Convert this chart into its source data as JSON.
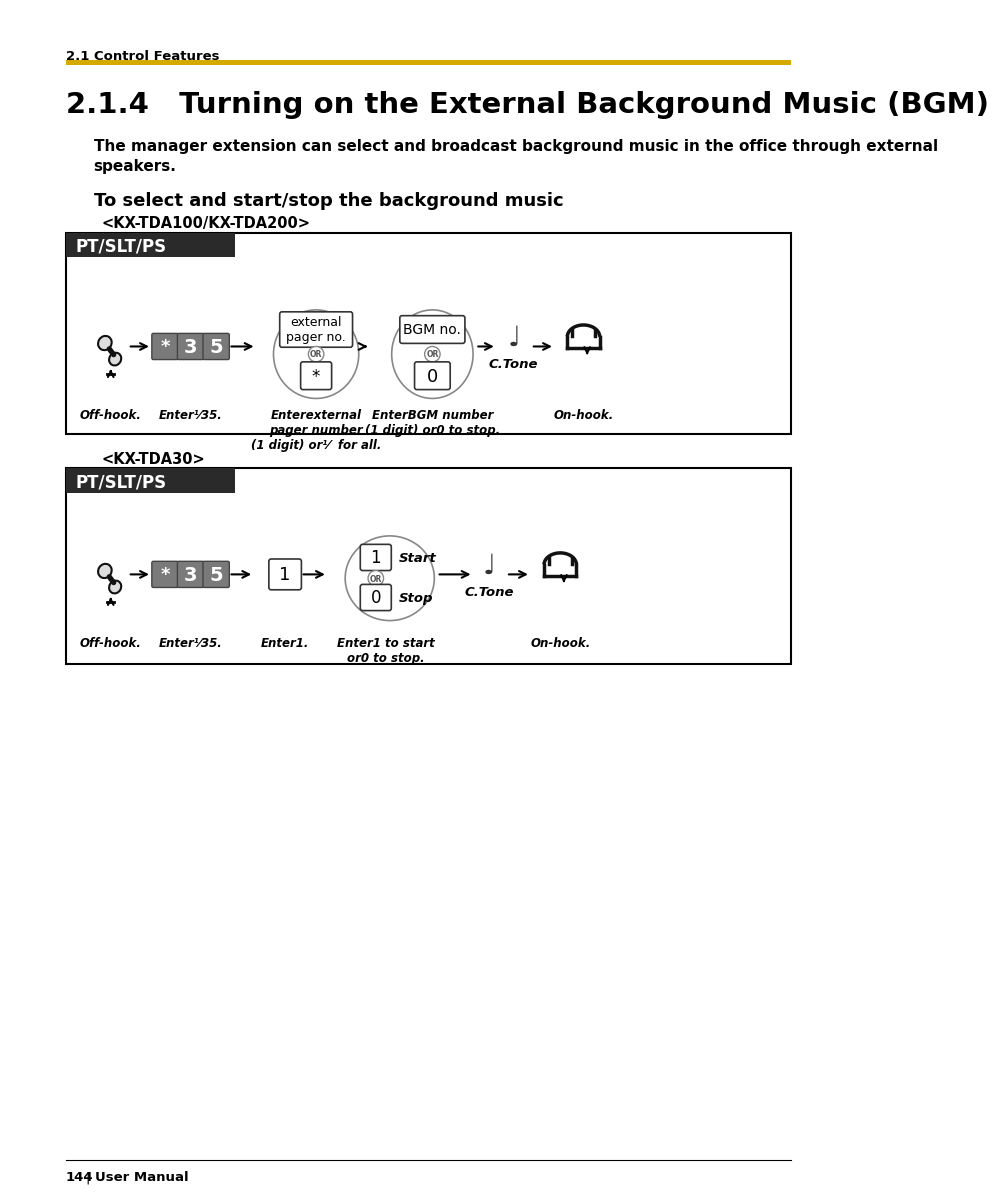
{
  "page_bg": "#ffffff",
  "section_label": "2.1 Control Features",
  "yellow_line_color": "#d4aa00",
  "title": "2.1.4   Turning on the External Background Music (BGM)",
  "body_text_line1": "The manager extension can select and broadcast background music in the office through external",
  "body_text_line2": "speakers.",
  "subsection": "To select and start/stop the background music",
  "model1_label": "<KX-TDA100/KX-TDA200>",
  "model2_label": "<KX-TDA30>",
  "box_bg": "#ffffff",
  "box_border": "#000000",
  "header_bg": "#2a2a2a",
  "header_text": "PT/SLT/PS",
  "header_text_color": "#ffffff",
  "footer_text": "144",
  "footer_sep": "|",
  "footer_manual": "User Manual",
  "key_bg": "#7a7a7a",
  "key_fg": "#ffffff",
  "cap1_offhook": "Off-hook.",
  "cap1_enter35": "Enter⅟35.",
  "cap1_external": "Enterexternal\npager number\n(1 digit) or⅟  for all.",
  "cap1_bgm": "EnterBGM number\n(1 digit) or0 to stop.",
  "cap1_onhook": "On-hook.",
  "cap2_offhook": "Off-hook.",
  "cap2_enter35": "Enter⅟35.",
  "cap2_enter1": "Enter1.",
  "cap2_start_stop": "Enter1 to start\nor0 to stop.",
  "cap2_onhook": "On-hook."
}
